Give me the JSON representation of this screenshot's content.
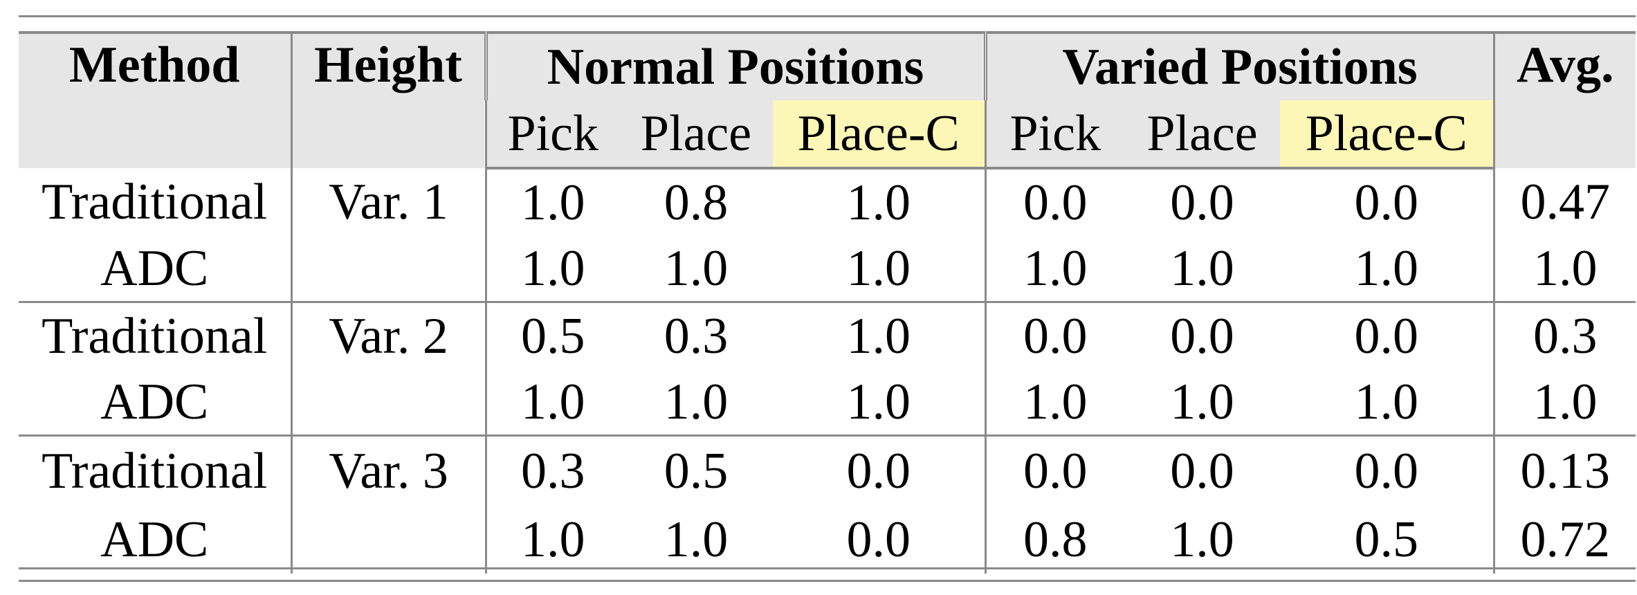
{
  "header": {
    "method": "Method",
    "height": "Height",
    "normal_positions": "Normal Positions",
    "varied_positions": "Varied Positions",
    "avg": "Avg.",
    "sub_columns": [
      "Pick",
      "Place",
      "Place-C",
      "Pick",
      "Place",
      "Place-C"
    ]
  },
  "highlight_color": "#fcf7b6",
  "groups": [
    {
      "height": "Var. 1",
      "rows": [
        {
          "method": "Traditional",
          "values": [
            "1.0",
            "0.8",
            "1.0",
            "0.0",
            "0.0",
            "0.0"
          ],
          "avg": "0.47"
        },
        {
          "method": "ADC",
          "values": [
            "1.0",
            "1.0",
            "1.0",
            "1.0",
            "1.0",
            "1.0"
          ],
          "avg": "1.0"
        }
      ]
    },
    {
      "height": "Var. 2",
      "rows": [
        {
          "method": "Traditional",
          "values": [
            "0.5",
            "0.3",
            "1.0",
            "0.0",
            "0.0",
            "0.0"
          ],
          "avg": "0.3"
        },
        {
          "method": "ADC",
          "values": [
            "1.0",
            "1.0",
            "1.0",
            "1.0",
            "1.0",
            "1.0"
          ],
          "avg": "1.0"
        }
      ]
    },
    {
      "height": "Var. 3",
      "rows": [
        {
          "method": "Traditional",
          "values": [
            "0.3",
            "0.5",
            "0.0",
            "0.0",
            "0.0",
            "0.0"
          ],
          "avg": "0.13"
        },
        {
          "method": "ADC",
          "values": [
            "1.0",
            "1.0",
            "0.0",
            "0.8",
            "1.0",
            "0.5"
          ],
          "avg": "0.72"
        }
      ]
    }
  ]
}
